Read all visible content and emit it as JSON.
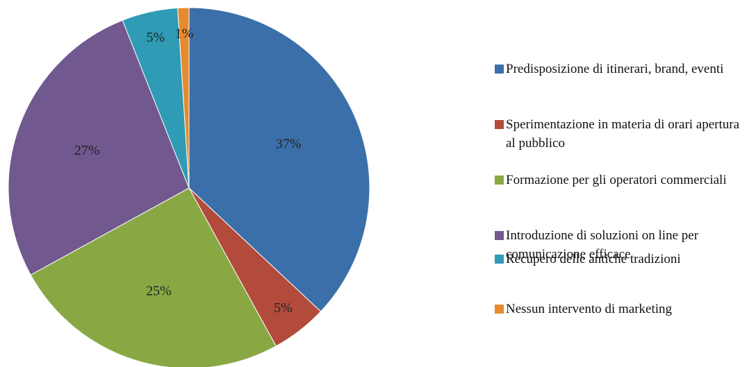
{
  "chart_data": {
    "type": "pie",
    "categories": [
      "Predisposizione di itinerari, brand, eventi",
      "Sperimentazione in materia di orari apertura al pubblico",
      "Formazione per gli operatori commerciali",
      "Introduzione di soluzioni on line per comunicazione efficace",
      "Recupero delle antiche tradizioni",
      "Nessun intervento di marketing"
    ],
    "values": [
      37,
      5,
      25,
      27,
      5,
      1
    ],
    "value_labels": [
      "37%",
      "5%",
      "25%",
      "27%",
      "5%",
      "1%"
    ],
    "colors": [
      "#3b6fa9",
      "#b24b3b",
      "#89a844",
      "#71588f",
      "#2f9bb5",
      "#e68b2d"
    ],
    "legend": "right"
  }
}
